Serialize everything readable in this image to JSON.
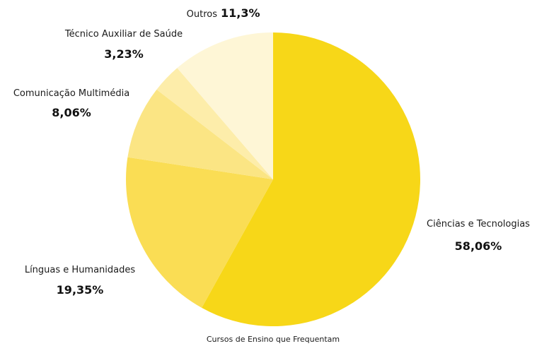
{
  "chart_data": {
    "type": "pie",
    "caption": "Cursos de Ensino que Frequentam",
    "slices": [
      {
        "label": "Ciências e Tecnologias",
        "value": 58.06,
        "display": "58,06%",
        "color": "#F7D718"
      },
      {
        "label": "Línguas e Humanidades",
        "value": 19.35,
        "display": "19,35%",
        "color": "#FADD54"
      },
      {
        "label": "Comunicação Multimédia",
        "value": 8.06,
        "display": "8,06%",
        "color": "#FBE584"
      },
      {
        "label": "Técnico Auxiliar de Saúde",
        "value": 3.23,
        "display": "3,23%",
        "color": "#FDEDAA"
      },
      {
        "label": "Outros",
        "value": 11.3,
        "display": "11,3%",
        "color": "#FEF6D6"
      }
    ]
  }
}
